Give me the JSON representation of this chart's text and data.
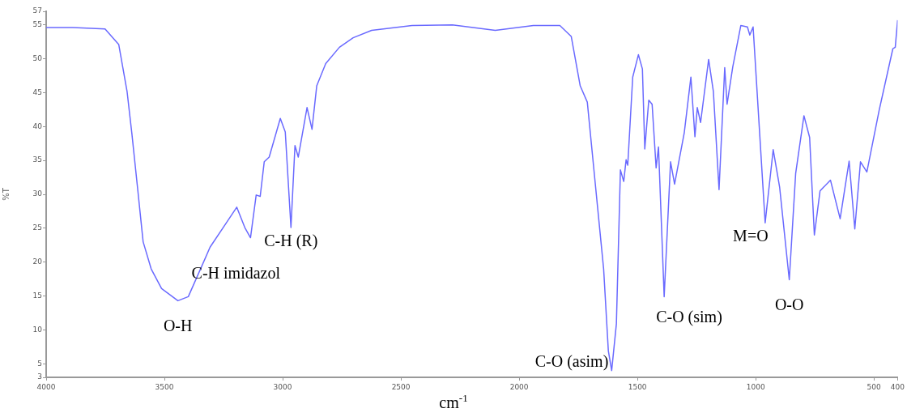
{
  "chart_data": {
    "type": "line",
    "xlabel": "cm$^{-1}$",
    "ylabel": "%T",
    "xlim": [
      4000,
      400
    ],
    "ylim": [
      3,
      57
    ],
    "xticks": [
      4000,
      3500,
      3000,
      2500,
      2000,
      1500,
      1000,
      500,
      400
    ],
    "yticks": [
      3,
      5,
      10,
      15,
      20,
      25,
      30,
      35,
      40,
      45,
      50,
      55,
      57
    ],
    "grid": false,
    "legend": false,
    "marker": "none",
    "line_style": "solid",
    "series": [
      {
        "color": "#6a6aff",
        "x": [
          4000,
          3887,
          3751,
          3693,
          3658,
          3638,
          3614,
          3590,
          3556,
          3512,
          3443,
          3399,
          3307,
          3238,
          3194,
          3160,
          3136,
          3112,
          3095,
          3078,
          3057,
          3010,
          2989,
          2965,
          2948,
          2934,
          2897,
          2876,
          2856,
          2818,
          2760,
          2702,
          2624,
          2453,
          2282,
          2101,
          1940,
          1828,
          1780,
          1742,
          1712,
          1677,
          1643,
          1623,
          1609,
          1589,
          1572,
          1558,
          1548,
          1541,
          1520,
          1496,
          1479,
          1469,
          1452,
          1438,
          1421,
          1411,
          1387,
          1360,
          1343,
          1302,
          1274,
          1257,
          1247,
          1233,
          1199,
          1179,
          1155,
          1131,
          1121,
          1097,
          1063,
          1035,
          1025,
          1011,
          960,
          926,
          899,
          858,
          831,
          796,
          772,
          752,
          728,
          684,
          643,
          605,
          581,
          557,
          530,
          478,
          420,
          410,
          400
        ],
        "values": [
          54.6,
          54.6,
          54.4,
          52.1,
          45.2,
          39.1,
          31.1,
          23.0,
          19.0,
          16.1,
          14.3,
          14.9,
          22.2,
          25.8,
          28.1,
          25.1,
          23.6,
          29.9,
          29.7,
          34.8,
          35.5,
          41.2,
          39.2,
          25.1,
          37.2,
          35.5,
          42.8,
          39.6,
          46.0,
          49.3,
          51.7,
          53.1,
          54.2,
          54.9,
          55.0,
          54.2,
          54.9,
          54.9,
          53.3,
          46.0,
          43.6,
          31.1,
          19.0,
          6.9,
          4.0,
          10.9,
          33.6,
          31.9,
          35.1,
          34.3,
          47.3,
          50.6,
          48.5,
          36.7,
          43.9,
          43.3,
          33.9,
          37.0,
          14.9,
          34.8,
          31.5,
          39.1,
          47.3,
          38.5,
          42.8,
          40.6,
          49.9,
          45.2,
          30.7,
          48.7,
          43.3,
          48.8,
          54.9,
          54.7,
          53.5,
          54.7,
          25.8,
          36.6,
          31.1,
          17.4,
          33.1,
          41.6,
          38.4,
          24.0,
          30.5,
          32.1,
          26.4,
          34.9,
          24.9,
          34.8,
          33.3,
          42.4,
          51.5,
          51.7,
          55.7
        ]
      }
    ],
    "annotations": [
      {
        "text": "O-H",
        "x": 3443,
        "y": 14.3
      },
      {
        "text": "C-H imidazol",
        "x": 3136,
        "y": 23.6
      },
      {
        "text": "C-H (R)",
        "x": 2965,
        "y": 25.1
      },
      {
        "text": "C-O (asim)",
        "x": 1609,
        "y": 4.0
      },
      {
        "text": "C-O (sim)",
        "x": 1387,
        "y": 14.9
      },
      {
        "text": "M=O",
        "x": 960,
        "y": 25.8
      },
      {
        "text": "O-O",
        "x": 858,
        "y": 17.4
      }
    ]
  }
}
